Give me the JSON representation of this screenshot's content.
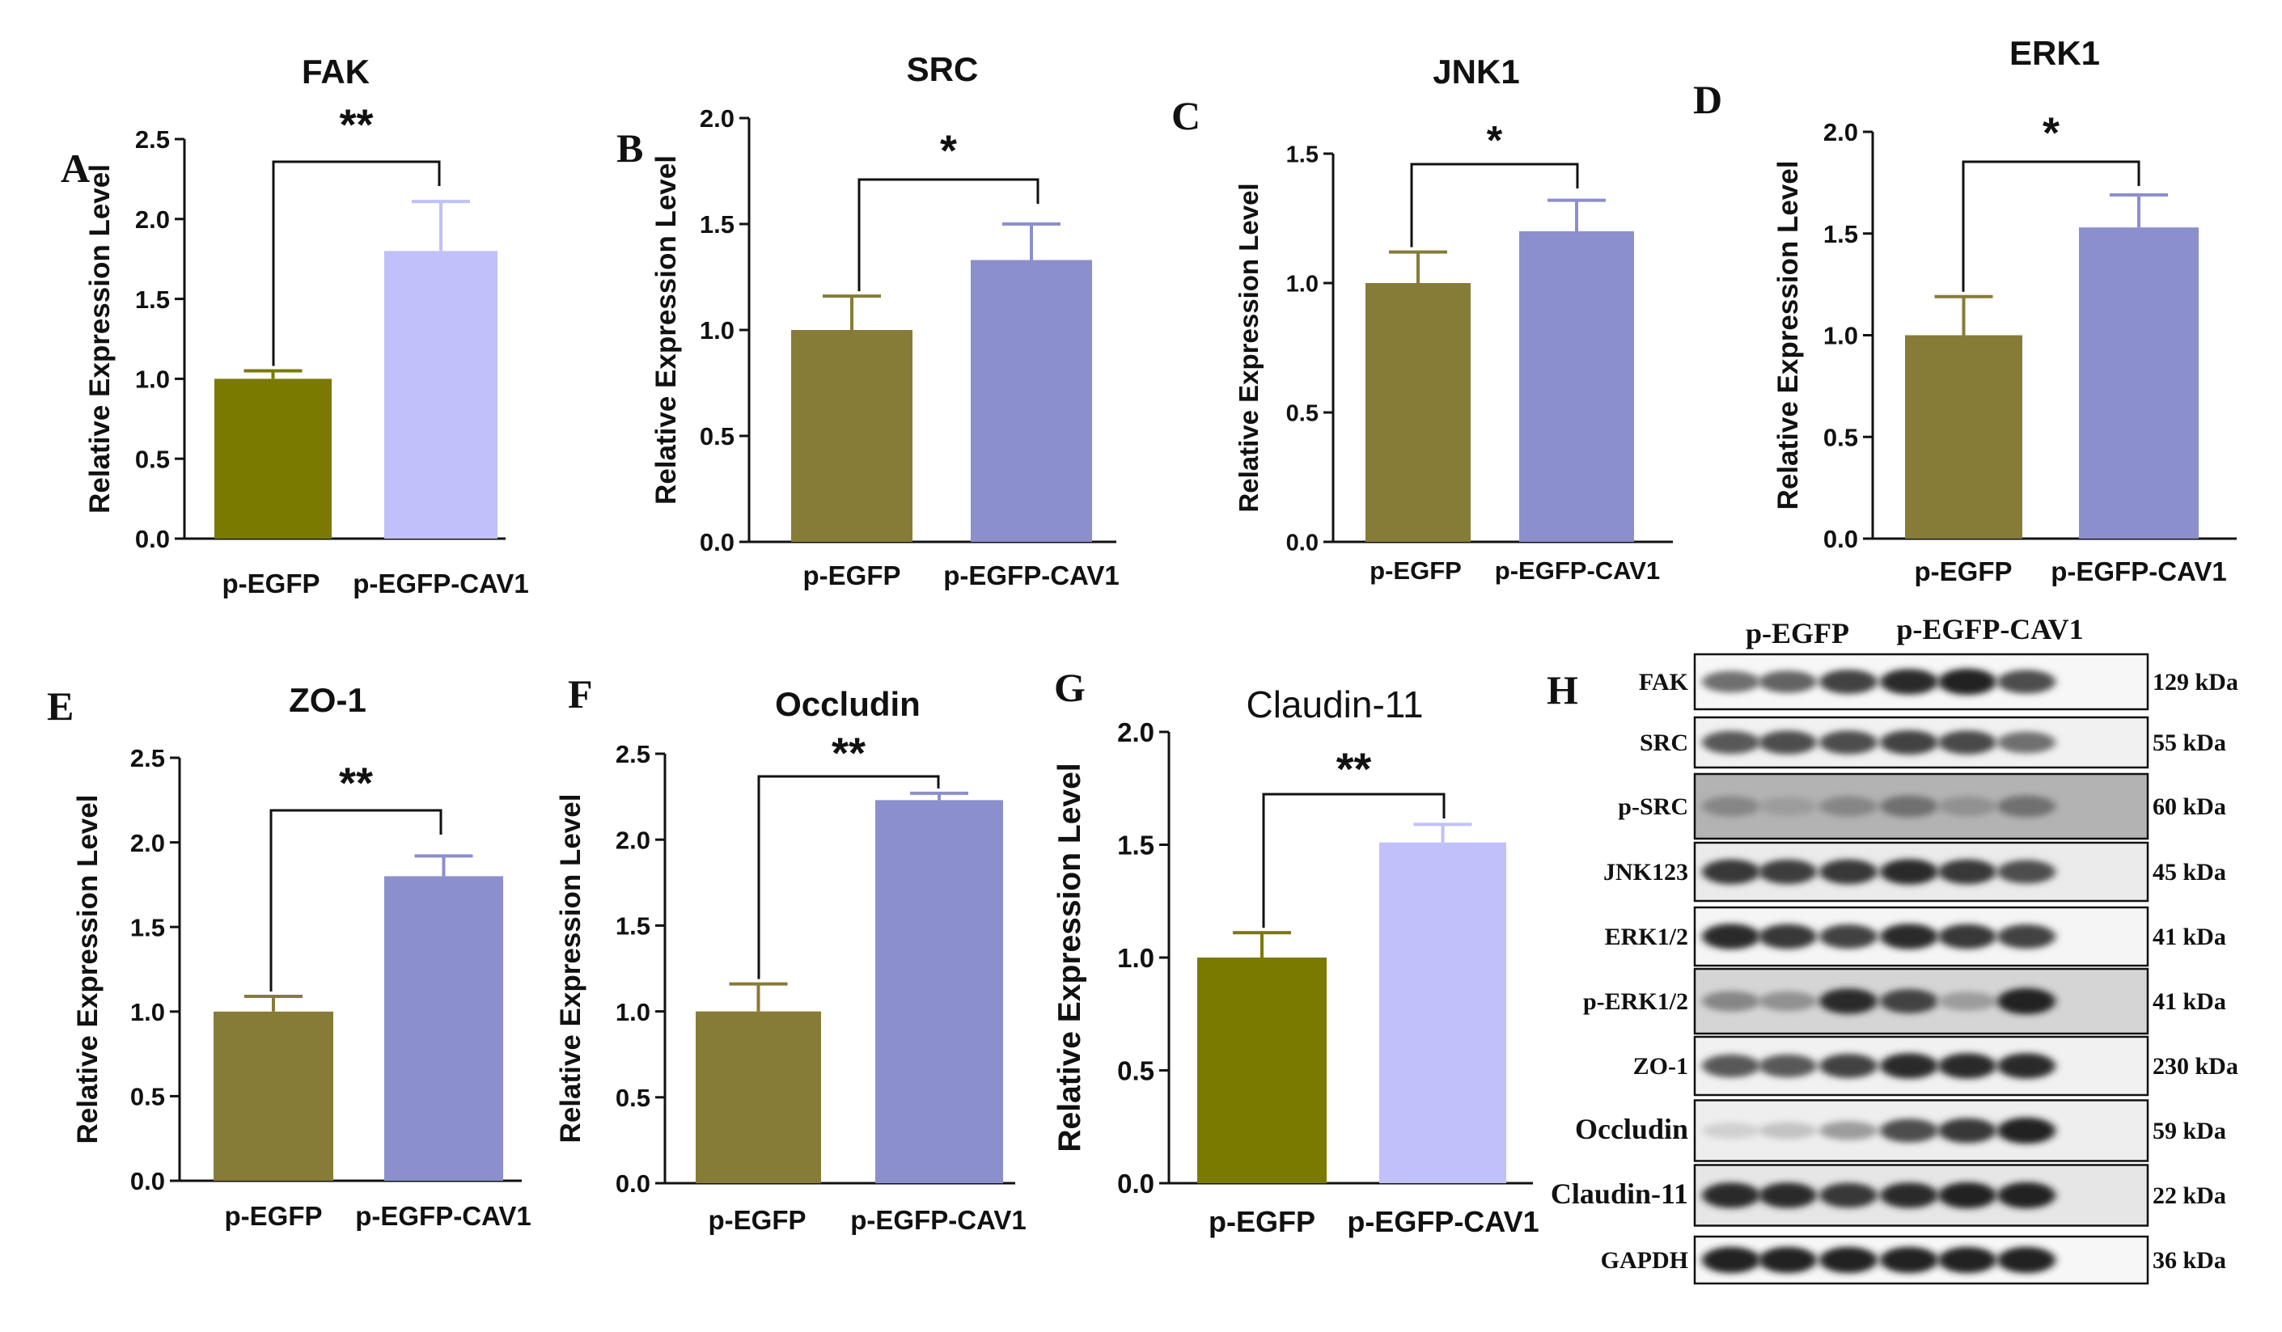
{
  "chart_data": [
    {
      "panel": "A",
      "type": "bar",
      "title": "FAK",
      "ylabel": "Relative Expression Level",
      "xlabel": "",
      "categories": [
        "p-EGFP",
        "p-EGFP-CAV1"
      ],
      "values": [
        1.0,
        1.8
      ],
      "errors": [
        0.05,
        0.31
      ],
      "ylim": [
        0,
        2.5
      ],
      "yticks": [
        "0.0",
        "0.5",
        "1.0",
        "1.5",
        "2.0",
        "2.5"
      ],
      "significance": "**",
      "colors": [
        "#7a7a00",
        "#c0c0fb"
      ]
    },
    {
      "panel": "B",
      "type": "bar",
      "title": "SRC",
      "ylabel": "Relative Expression Level",
      "xlabel": "",
      "categories": [
        "p-EGFP",
        "p-EGFP-CAV1"
      ],
      "values": [
        1.0,
        1.33
      ],
      "errors": [
        0.16,
        0.17
      ],
      "ylim": [
        0,
        2.0
      ],
      "yticks": [
        "0.0",
        "0.5",
        "1.0",
        "1.5",
        "2.0"
      ],
      "significance": "*",
      "colors": [
        "#877b38",
        "#8b8fcc"
      ]
    },
    {
      "panel": "C",
      "type": "bar",
      "title": "JNK1",
      "ylabel": "Relative Expression Level",
      "xlabel": "",
      "categories": [
        "p-EGFP",
        "p-EGFP-CAV1"
      ],
      "values": [
        1.0,
        1.2
      ],
      "errors": [
        0.12,
        0.12
      ],
      "ylim": [
        0,
        1.5
      ],
      "yticks": [
        "0.0",
        "0.5",
        "1.0",
        "1.5"
      ],
      "significance": "*",
      "colors": [
        "#877b38",
        "#8b8fcc"
      ]
    },
    {
      "panel": "D",
      "type": "bar",
      "title": "ERK1",
      "ylabel": "Relative Expression Level",
      "xlabel": "",
      "categories": [
        "p-EGFP",
        "p-EGFP-CAV1"
      ],
      "values": [
        1.0,
        1.53
      ],
      "errors": [
        0.19,
        0.16
      ],
      "ylim": [
        0,
        2.0
      ],
      "yticks": [
        "0.0",
        "0.5",
        "1.0",
        "1.5",
        "2.0"
      ],
      "significance": "*",
      "colors": [
        "#877b38",
        "#8b8fcc"
      ]
    },
    {
      "panel": "E",
      "type": "bar",
      "title": "ZO-1",
      "ylabel": "Relative Expression Level",
      "xlabel": "",
      "categories": [
        "p-EGFP",
        "p-EGFP-CAV1"
      ],
      "values": [
        1.0,
        1.8
      ],
      "errors": [
        0.09,
        0.12
      ],
      "ylim": [
        0,
        2.5
      ],
      "yticks": [
        "0.0",
        "0.5",
        "1.0",
        "1.5",
        "2.0",
        "2.5"
      ],
      "significance": "**",
      "colors": [
        "#877b38",
        "#8b8fcc"
      ]
    },
    {
      "panel": "F",
      "type": "bar",
      "title": "Occludin",
      "ylabel": "Relative Expression Level",
      "xlabel": "",
      "categories": [
        "p-EGFP",
        "p-EGFP-CAV1"
      ],
      "values": [
        1.0,
        2.23
      ],
      "errors": [
        0.16,
        0.04
      ],
      "ylim": [
        0,
        2.5
      ],
      "yticks": [
        "0.0",
        "0.5",
        "1.0",
        "1.5",
        "2.0",
        "2.5"
      ],
      "significance": "**",
      "colors": [
        "#877b38",
        "#8b8fcc"
      ]
    },
    {
      "panel": "G",
      "type": "bar",
      "title": "Claudin-11",
      "ylabel": "Relative Expression Level",
      "xlabel": "",
      "categories": [
        "p-EGFP",
        "p-EGFP-CAV1"
      ],
      "values": [
        1.0,
        1.51
      ],
      "errors": [
        0.11,
        0.08
      ],
      "ylim": [
        0,
        2.0
      ],
      "yticks": [
        "0.0",
        "0.5",
        "1.0",
        "1.5",
        "2.0"
      ],
      "significance": "**",
      "colors": [
        "#7a7a00",
        "#c0c0fb"
      ]
    }
  ],
  "western_blot": {
    "panel": "H",
    "groups": [
      "p-EGFP",
      "p-EGFP-CAV1"
    ],
    "rows": [
      {
        "protein": "FAK",
        "size": "129 kDa",
        "intensity": [
          0.55,
          0.6,
          0.75,
          0.85,
          0.9,
          0.7
        ],
        "bg": 0.05
      },
      {
        "protein": "SRC",
        "size": "55 kDa",
        "intensity": [
          0.65,
          0.7,
          0.7,
          0.75,
          0.72,
          0.55
        ],
        "bg": 0.08
      },
      {
        "protein": "p-SRC",
        "size": "60 kDa",
        "intensity": [
          0.45,
          0.35,
          0.45,
          0.55,
          0.4,
          0.55
        ],
        "bg": 0.45
      },
      {
        "protein": "JNK123",
        "size": "45 kDa",
        "intensity": [
          0.8,
          0.78,
          0.8,
          0.85,
          0.8,
          0.7
        ],
        "bg": 0.12
      },
      {
        "protein": "ERK1/2",
        "size": "41 kDa",
        "intensity": [
          0.85,
          0.8,
          0.75,
          0.85,
          0.8,
          0.75
        ],
        "bg": 0.06
      },
      {
        "protein": "p-ERK1/2",
        "size": "41 kDa",
        "intensity": [
          0.45,
          0.4,
          0.85,
          0.75,
          0.35,
          0.9
        ],
        "bg": 0.25
      },
      {
        "protein": "ZO-1",
        "size": "230 kDa",
        "intensity": [
          0.65,
          0.65,
          0.75,
          0.85,
          0.85,
          0.85
        ],
        "bg": 0.08
      },
      {
        "protein": "Occludin",
        "size": "59 kDa",
        "intensity": [
          0.12,
          0.18,
          0.35,
          0.7,
          0.8,
          0.9
        ],
        "bg": 0.1
      },
      {
        "protein": "Claudin-11",
        "size": "22 kDa",
        "intensity": [
          0.85,
          0.85,
          0.8,
          0.85,
          0.9,
          0.9
        ],
        "bg": 0.15
      },
      {
        "protein": "GAPDH",
        "size": "36 kDa",
        "intensity": [
          0.9,
          0.9,
          0.9,
          0.9,
          0.9,
          0.9
        ],
        "bg": 0.05
      }
    ]
  }
}
